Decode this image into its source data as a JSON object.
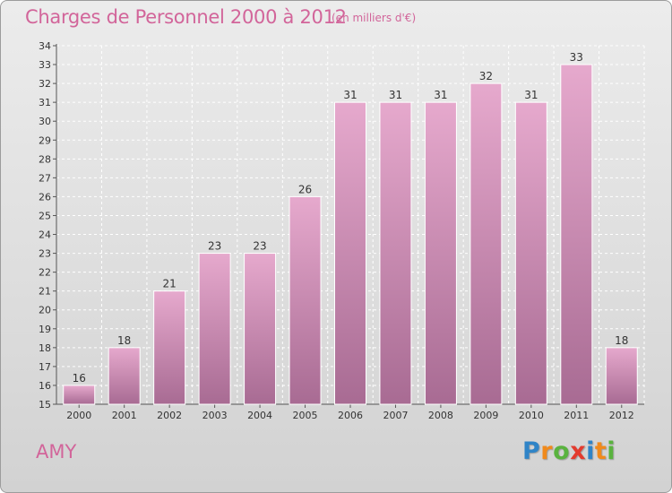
{
  "title": "Charges de Personnel 2000 à 2012",
  "unit": "(en milliers d'€)",
  "commune": "AMY",
  "logo": {
    "text": "Proxiti",
    "letters": [
      "P",
      "r",
      "o",
      "x",
      "i",
      "t",
      "i"
    ],
    "colors": [
      "#2f84c7",
      "#f08a1c",
      "#5ab33f",
      "#e33b2e",
      "#2f84c7",
      "#f08a1c",
      "#5ab33f"
    ]
  },
  "colors": {
    "bar_top": "#e6a9cd",
    "bar_bottom": "#a86b93",
    "accent": "#d2659a"
  },
  "chart_data": {
    "type": "bar",
    "title": "Charges de Personnel 2000 à 2012",
    "subtitle": "(en milliers d'€)",
    "categories": [
      "2000",
      "2001",
      "2002",
      "2003",
      "2004",
      "2005",
      "2006",
      "2007",
      "2008",
      "2009",
      "2010",
      "2011",
      "2012"
    ],
    "values": [
      16,
      18,
      21,
      23,
      23,
      26,
      31,
      31,
      31,
      32,
      31,
      33,
      18
    ],
    "ylim": [
      15,
      34
    ],
    "yticks": [
      15,
      16,
      17,
      18,
      19,
      20,
      21,
      22,
      23,
      24,
      25,
      26,
      27,
      28,
      29,
      30,
      31,
      32,
      33,
      34
    ],
    "grid": true,
    "data_labels": true
  }
}
